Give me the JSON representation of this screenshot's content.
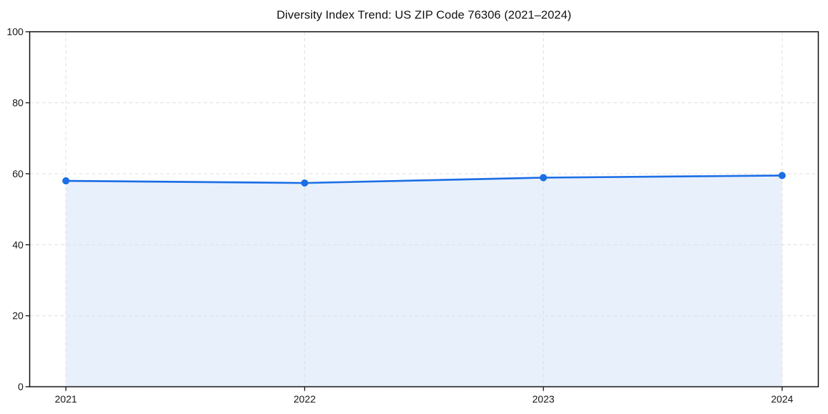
{
  "chart_data": {
    "type": "line",
    "title": "Diversity Index Trend: US ZIP Code 76306 (2021–2024)",
    "categories": [
      "2021",
      "2022",
      "2023",
      "2024"
    ],
    "values": [
      58.0,
      57.4,
      58.9,
      59.5
    ],
    "xlabel": "",
    "ylabel": "",
    "ylim": [
      0,
      100
    ],
    "yticks": [
      0,
      20,
      40,
      60,
      80,
      100
    ],
    "grid": true,
    "legend": "none",
    "area_fill": true,
    "marker": "circle",
    "colors": {
      "line": "#1b6ee6",
      "fill": "rgba(27,110,230,0.10)",
      "grid": "#e0e0e0",
      "axis": "#1a1a1a",
      "text": "#1a1a1a",
      "background": "#ffffff"
    }
  }
}
